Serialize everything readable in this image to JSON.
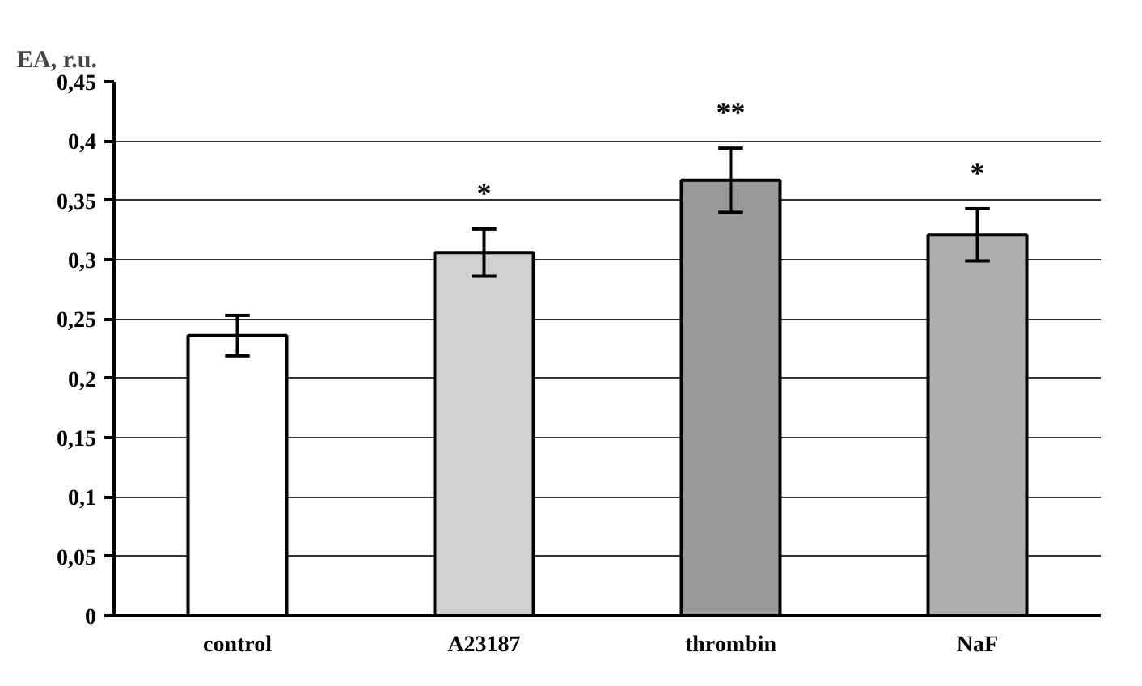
{
  "chart_data": {
    "type": "bar",
    "ylabel": "EA, r.u.",
    "categories": [
      "control",
      "A23187",
      "thrombin",
      "NaF"
    ],
    "values": [
      0.236,
      0.306,
      0.367,
      0.321
    ],
    "errors": [
      0.017,
      0.02,
      0.027,
      0.022
    ],
    "colors": [
      "#ffffff",
      "#d0d0d0",
      "#999999",
      "#adafad"
    ],
    "ylim": [
      0,
      0.45
    ],
    "yticks": [
      0,
      {
        "value": 0.05,
        "label": "0,05"
      },
      {
        "value": 0.1,
        "label": "0,1"
      },
      {
        "value": 0.15,
        "label": "0,15"
      },
      {
        "value": 0.2,
        "label": "0,2"
      },
      {
        "value": 0.25,
        "label": "0,25"
      },
      {
        "value": 0.3,
        "label": "0,3"
      },
      {
        "value": 0.35,
        "label": "0,35"
      },
      {
        "value": 0.4,
        "label": "0,4"
      },
      {
        "value": 0.45,
        "label": "0,45"
      }
    ],
    "grid": "y",
    "annotations": [
      "*",
      "**",
      "*"
    ]
  }
}
